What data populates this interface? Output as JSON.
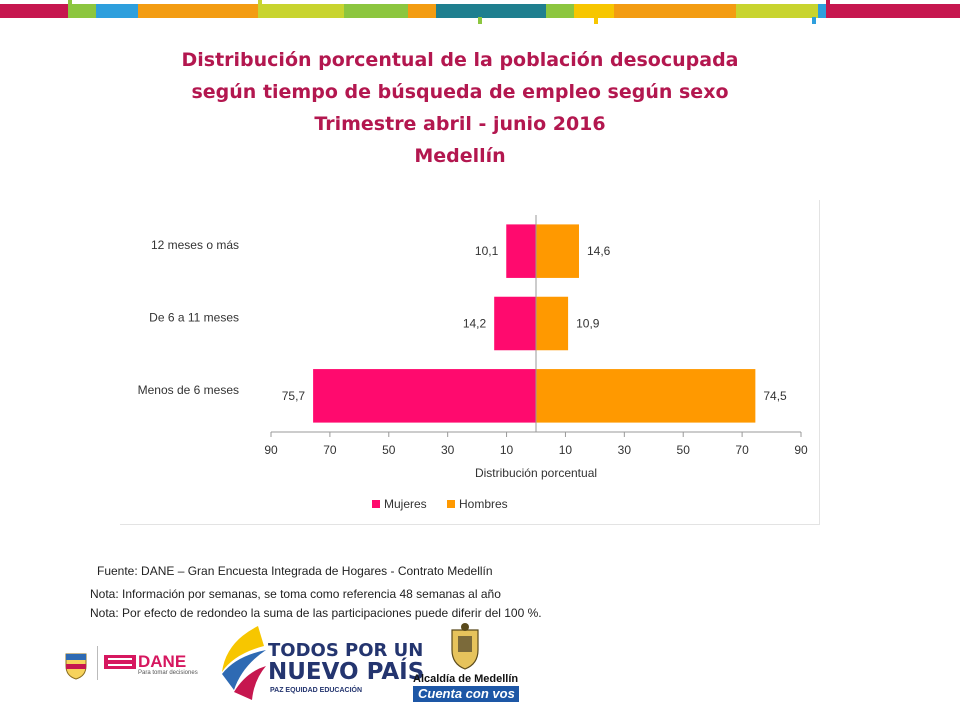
{
  "title_lines": [
    "Distribución porcentual de la población desocupada",
    "según tiempo de búsqueda de empleo según sexo",
    "Trimestre abril - junio 2016",
    "Medellín"
  ],
  "colors": {
    "mujeres": "#ff0a6e",
    "hombres": "#ff9900",
    "title": "#b3174f",
    "top_bar": [
      "#c6174f",
      "#f39c12",
      "#f7c600",
      "#8cc63f",
      "#2e9fdd",
      "#1f7f8f",
      "#c8d42f"
    ]
  },
  "chart_data": {
    "type": "bar",
    "orientation": "horizontal",
    "layout": "population-pyramid",
    "categories": [
      "12 meses o más",
      "De 6 a 11 meses",
      "Menos de 6 meses"
    ],
    "series": [
      {
        "name": "Mujeres",
        "side": "left",
        "values": [
          10.1,
          14.2,
          75.7
        ],
        "labels": [
          "10,1",
          "14,2",
          "75,7"
        ]
      },
      {
        "name": "Hombres",
        "side": "right",
        "values": [
          14.6,
          10.9,
          74.5
        ],
        "labels": [
          "14,6",
          "10,9",
          "74,5"
        ]
      }
    ],
    "x_ticks": [
      "90",
      "70",
      "50",
      "30",
      "10",
      "10",
      "30",
      "50",
      "70",
      "90"
    ],
    "xlabel": "Distribución porcentual",
    "ylabel": "",
    "xlim": [
      -90,
      90
    ],
    "grid": false,
    "legend_position": "bottom"
  },
  "notes": {
    "source": "Fuente: DANE – Gran Encuesta Integrada de Hogares - Contrato Medellín",
    "note1": "Nota: Información por semanas, se toma como referencia 48 semanas al año",
    "note2": "Nota: Por efecto de redondeo la suma de las participaciones puede diferir del 100 %."
  },
  "logos": {
    "dane": "DANE",
    "dane_tagline": "Para tomar decisiones",
    "todos_line1": "TODOS POR UN",
    "todos_line2": "NUEVO PAÍS",
    "todos_line3": "PAZ   EQUIDAD   EDUCACIÓN",
    "alcaldia": "Alcaldía de Medellín",
    "cuenta": "Cuenta con vos"
  }
}
